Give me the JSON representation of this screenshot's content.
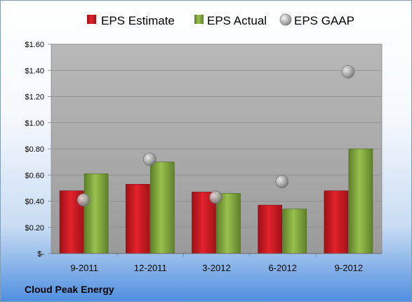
{
  "company": "Cloud Peak Energy",
  "colors": {
    "estimate": "#c8161d",
    "actual": "#7ea33a",
    "gaap": "#a6a6a6",
    "plot_bg": "#b5b5b5"
  },
  "legend": {
    "estimate": "EPS Estimate",
    "actual": "EPS Actual",
    "gaap": "EPS GAAP"
  },
  "chart_data": {
    "type": "bar",
    "categories": [
      "9-2011",
      "12-2011",
      "3-2012",
      "6-2012",
      "9-2012"
    ],
    "series": [
      {
        "name": "EPS Estimate",
        "kind": "bar",
        "values": [
          0.48,
          0.53,
          0.47,
          0.37,
          0.48
        ]
      },
      {
        "name": "EPS Actual",
        "kind": "bar",
        "values": [
          0.61,
          0.7,
          0.46,
          0.34,
          0.8
        ]
      },
      {
        "name": "EPS GAAP",
        "kind": "marker",
        "values": [
          0.41,
          0.72,
          0.43,
          0.55,
          1.39
        ]
      }
    ],
    "y_ticks": [
      0,
      0.2,
      0.4,
      0.6,
      0.8,
      1.0,
      1.2,
      1.4,
      1.6
    ],
    "y_tick_labels": [
      "$-",
      "$0.20",
      "$0.40",
      "$0.60",
      "$0.80",
      "$1.00",
      "$1.20",
      "$1.40",
      "$1.60"
    ],
    "ylim": [
      0,
      1.6
    ],
    "grid": true,
    "legend_position": "top"
  }
}
